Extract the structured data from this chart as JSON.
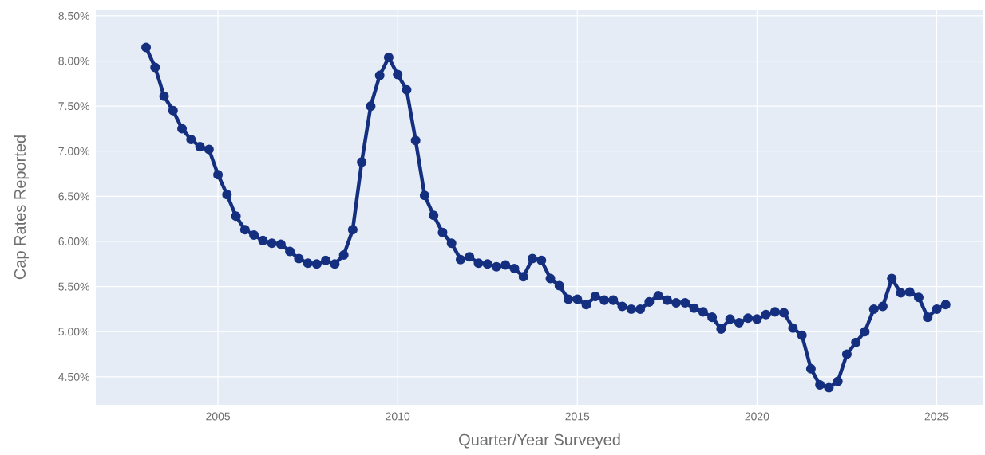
{
  "chart_data": {
    "type": "line",
    "xlabel": "Quarter/Year Surveyed",
    "ylabel": "Cap Rates Reported",
    "x": [
      2003.0,
      2003.25,
      2003.5,
      2003.75,
      2004.0,
      2004.25,
      2004.5,
      2004.75,
      2005.0,
      2005.25,
      2005.5,
      2005.75,
      2006.0,
      2006.25,
      2006.5,
      2006.75,
      2007.0,
      2007.25,
      2007.5,
      2007.75,
      2008.0,
      2008.25,
      2008.5,
      2008.75,
      2009.0,
      2009.25,
      2009.5,
      2009.75,
      2010.0,
      2010.25,
      2010.5,
      2010.75,
      2011.0,
      2011.25,
      2011.5,
      2011.75,
      2012.0,
      2012.25,
      2012.5,
      2012.75,
      2013.0,
      2013.25,
      2013.5,
      2013.75,
      2014.0,
      2014.25,
      2014.5,
      2014.75,
      2015.0,
      2015.25,
      2015.5,
      2015.75,
      2016.0,
      2016.25,
      2016.5,
      2016.75,
      2017.0,
      2017.25,
      2017.5,
      2017.75,
      2018.0,
      2018.25,
      2018.5,
      2018.75,
      2019.0,
      2019.25,
      2019.5,
      2019.75,
      2020.0,
      2020.25,
      2020.5,
      2020.75,
      2021.0,
      2021.25,
      2021.5,
      2021.75,
      2022.0,
      2022.25,
      2022.5,
      2022.75,
      2023.0,
      2023.25,
      2023.5,
      2023.75,
      2024.0,
      2024.25,
      2024.5,
      2024.75,
      2025.0,
      2025.25
    ],
    "series": [
      {
        "color": "#142f7f",
        "values": [
          8.15,
          7.93,
          7.61,
          7.45,
          7.25,
          7.13,
          7.05,
          7.02,
          6.74,
          6.52,
          6.28,
          6.13,
          6.07,
          6.01,
          5.98,
          5.97,
          5.89,
          5.81,
          5.76,
          5.75,
          5.79,
          5.75,
          5.85,
          6.13,
          6.88,
          7.5,
          7.84,
          8.04,
          7.85,
          7.68,
          7.12,
          6.51,
          6.29,
          6.1,
          5.98,
          5.8,
          5.83,
          5.76,
          5.75,
          5.72,
          5.74,
          5.7,
          5.61,
          5.81,
          5.79,
          5.59,
          5.51,
          5.36,
          5.36,
          5.3,
          5.39,
          5.35,
          5.35,
          5.28,
          5.25,
          5.25,
          5.33,
          5.4,
          5.35,
          5.32,
          5.32,
          5.26,
          5.22,
          5.16,
          5.03,
          5.14,
          5.1,
          5.15,
          5.14,
          5.19,
          5.22,
          5.21,
          5.04,
          4.96,
          4.59,
          4.41,
          4.38,
          4.45,
          4.75,
          4.88,
          5.0,
          5.25,
          5.28,
          5.59,
          5.43,
          5.44,
          5.38,
          5.16,
          5.25,
          5.3
        ]
      }
    ],
    "xlim": [
      2001.6,
      2026.3
    ],
    "ylim": [
      4.19,
      8.57
    ],
    "xticks": [
      2005,
      2010,
      2015,
      2020,
      2025
    ],
    "yticks": [
      {
        "value": 4.5,
        "label": "4.50%"
      },
      {
        "value": 5.0,
        "label": "5.00%"
      },
      {
        "value": 5.5,
        "label": "5.50%"
      },
      {
        "value": 6.0,
        "label": "6.00%"
      },
      {
        "value": 6.5,
        "label": "6.50%"
      },
      {
        "value": 7.0,
        "label": "7.00%"
      },
      {
        "value": 7.5,
        "label": "7.50%"
      },
      {
        "value": 8.0,
        "label": "8.00%"
      },
      {
        "value": 8.5,
        "label": "8.50%"
      }
    ],
    "grid": true,
    "marker": "circle",
    "line_style": "solid"
  }
}
